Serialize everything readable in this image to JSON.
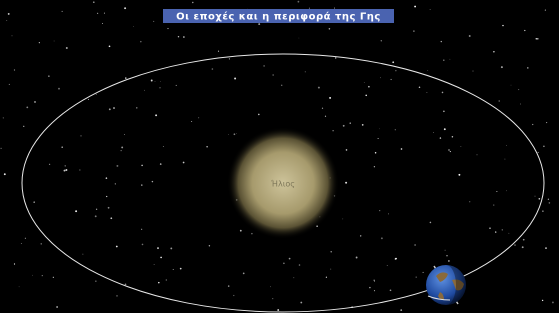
{
  "header": {
    "title": "Οι εποχές και η περιφορά της Γης"
  },
  "sun": {
    "label": "Ήλιος"
  }
}
